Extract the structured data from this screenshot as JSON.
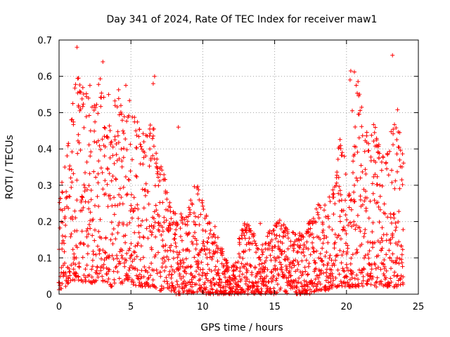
{
  "chart_data": {
    "type": "scatter",
    "title": "Day 341 of 2024, Rate Of TEC Index for receiver maw1",
    "xlabel": "GPS time / hours",
    "ylabel": "ROTI / TECUs",
    "xlim": [
      0,
      25
    ],
    "ylim": [
      0,
      0.7
    ],
    "xticks": [
      0,
      5,
      10,
      15,
      20,
      25
    ],
    "xtick_labels": [
      "0",
      "5",
      "10",
      "15",
      "20",
      "25"
    ],
    "yticks": [
      0,
      0.1,
      0.2,
      0.3,
      0.4,
      0.5,
      0.6,
      0.7
    ],
    "ytick_labels": [
      "0",
      "0.1",
      "0.2",
      "0.3",
      "0.4",
      "0.5",
      "0.6",
      "0.7"
    ],
    "grid": true,
    "marker": "+",
    "series_color": "#ff0000",
    "x_step_hours": 0.05,
    "envelope_max": [
      0.25,
      0.38,
      0.5,
      0.6,
      0.58,
      0.55,
      0.52,
      0.62,
      0.5,
      0.48,
      0.58,
      0.5,
      0.55,
      0.52,
      0.45,
      0.47,
      0.48,
      0.36,
      0.35,
      0.25,
      0.22,
      0.23,
      0.22,
      0.3,
      0.3,
      0.23,
      0.2,
      0.18,
      0.12,
      0.08,
      0.08,
      0.18,
      0.2,
      0.18,
      0.14,
      0.14,
      0.18,
      0.2,
      0.21,
      0.18,
      0.17,
      0.17,
      0.16,
      0.22,
      0.24,
      0.26,
      0.26,
      0.3,
      0.46,
      0.36,
      0.28,
      0.62,
      0.52,
      0.42,
      0.48,
      0.4,
      0.38,
      0.48,
      0.46,
      0.4
    ],
    "envelope_min": [
      0.01,
      0.02,
      0.03,
      0.04,
      0.03,
      0.03,
      0.03,
      0.04,
      0.03,
      0.02,
      0.03,
      0.03,
      0.04,
      0.02,
      0.02,
      0.02,
      0.02,
      0.01,
      0.01,
      0.01,
      0.0,
      0.0,
      0.0,
      0.0,
      0.01,
      0.0,
      0.0,
      0.0,
      0.0,
      0.0,
      0.0,
      0.0,
      0.0,
      0.0,
      0.0,
      0.0,
      0.0,
      0.0,
      0.0,
      0.0,
      0.0,
      0.0,
      0.0,
      0.0,
      0.01,
      0.01,
      0.01,
      0.02,
      0.02,
      0.02,
      0.02,
      0.02,
      0.02,
      0.03,
      0.02,
      0.02,
      0.02,
      0.02,
      0.02,
      0.02
    ],
    "outliers": [
      {
        "x": 1.25,
        "y": 0.68
      },
      {
        "x": 3.05,
        "y": 0.64
      },
      {
        "x": 1.35,
        "y": 0.595
      },
      {
        "x": 6.65,
        "y": 0.6
      },
      {
        "x": 6.55,
        "y": 0.58
      },
      {
        "x": 4.65,
        "y": 0.575
      },
      {
        "x": 3.45,
        "y": 0.55
      },
      {
        "x": 2.15,
        "y": 0.575
      },
      {
        "x": 8.3,
        "y": 0.46
      },
      {
        "x": 6.6,
        "y": 0.455
      },
      {
        "x": 20.3,
        "y": 0.615
      },
      {
        "x": 20.55,
        "y": 0.612
      },
      {
        "x": 20.25,
        "y": 0.59
      },
      {
        "x": 20.4,
        "y": 0.505
      },
      {
        "x": 23.2,
        "y": 0.658
      },
      {
        "x": 23.55,
        "y": 0.508
      },
      {
        "x": 23.45,
        "y": 0.458
      },
      {
        "x": 23.7,
        "y": 0.445
      },
      {
        "x": 22.1,
        "y": 0.425
      },
      {
        "x": 12.9,
        "y": 0.195
      },
      {
        "x": 14.0,
        "y": 0.195
      },
      {
        "x": 15.7,
        "y": 0.175
      }
    ]
  }
}
